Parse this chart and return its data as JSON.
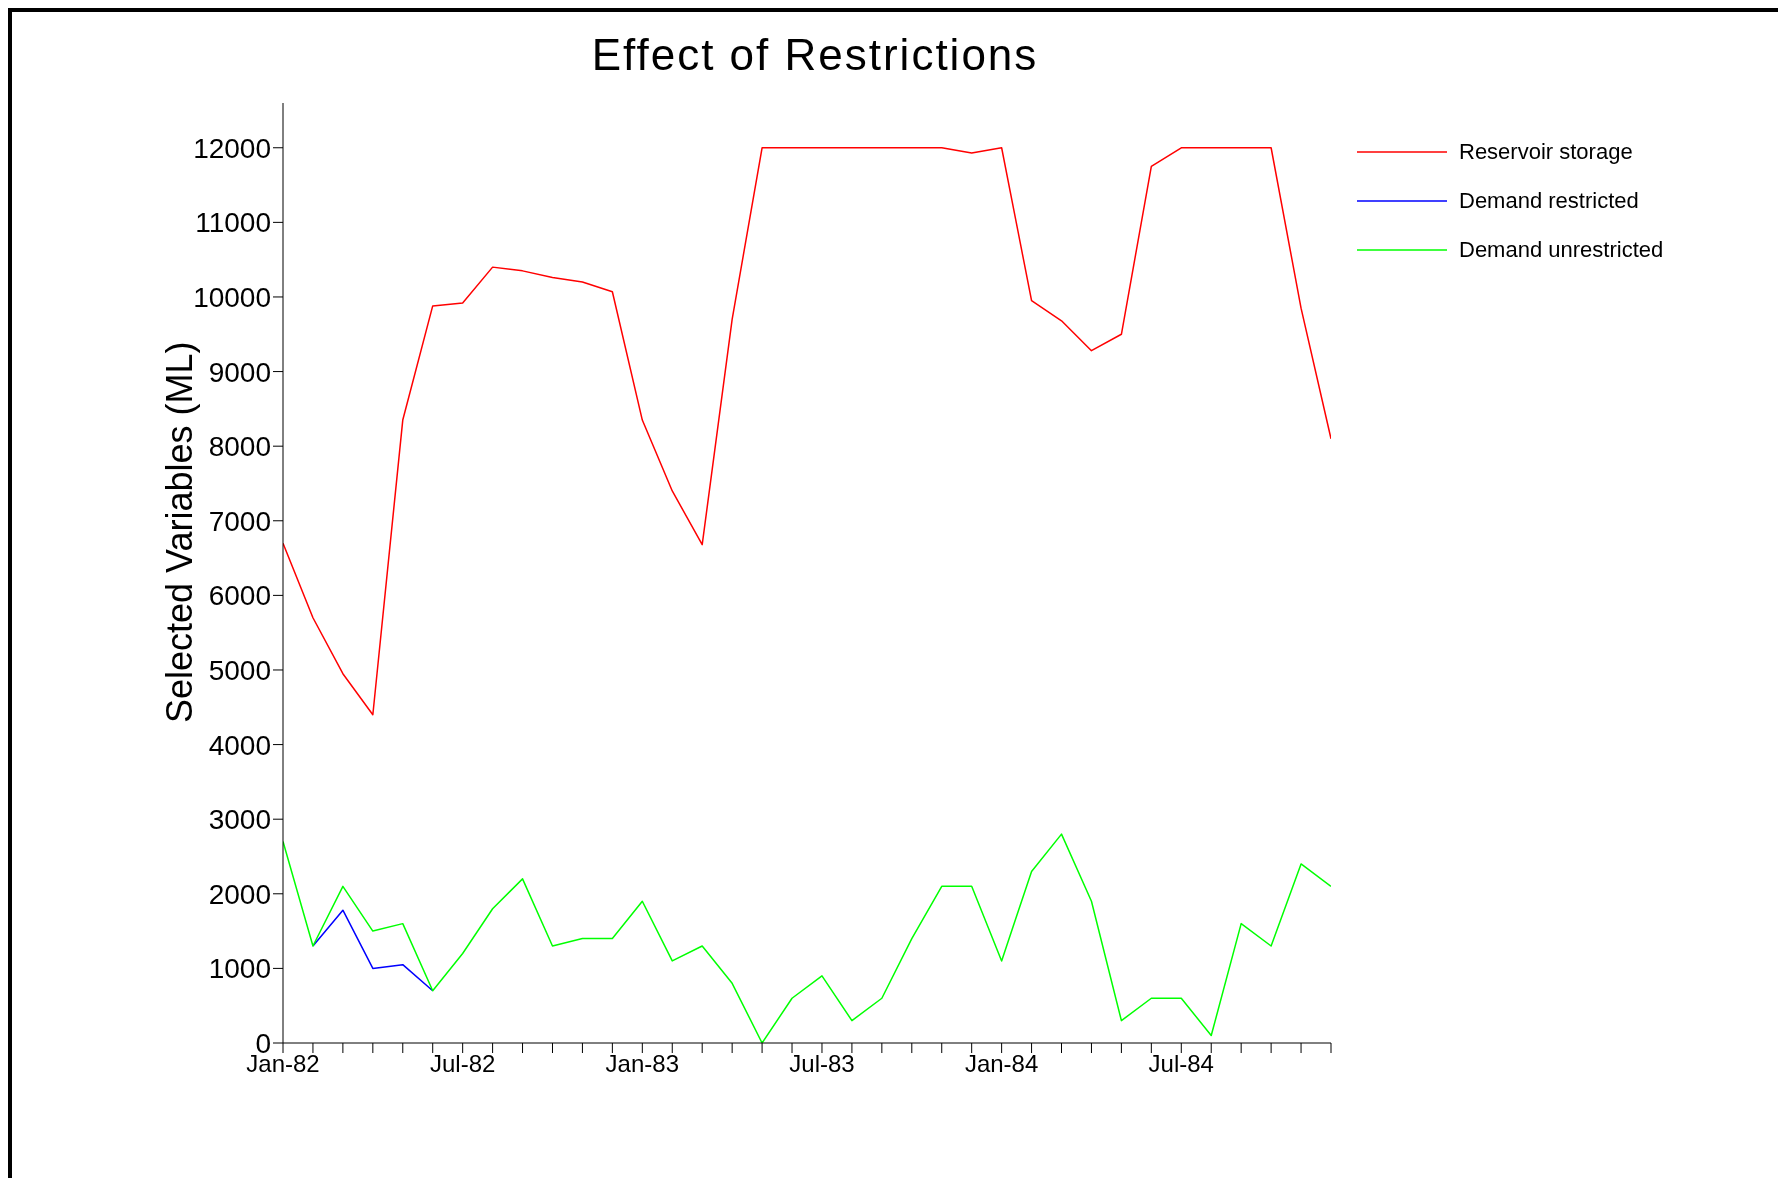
{
  "chart_data": {
    "type": "line",
    "title": "Effect of Restrictions",
    "ylabel": "Selected Variables (ML)",
    "categories": [
      "Jan-82",
      null,
      null,
      null,
      null,
      null,
      "Jul-82",
      null,
      null,
      null,
      null,
      null,
      "Jan-83",
      null,
      null,
      null,
      null,
      null,
      "Jul-83",
      null,
      null,
      null,
      null,
      null,
      "Jan-84",
      null,
      null,
      null,
      null,
      null,
      "Jul-84",
      null,
      null,
      null,
      null,
      null
    ],
    "series": [
      {
        "name": "Reservoir storage",
        "color": "#ff0000",
        "values": [
          6700,
          5700,
          4950,
          4400,
          8350,
          9880,
          9920,
          10400,
          10350,
          10260,
          10200,
          10070,
          8350,
          7400,
          6680,
          9700,
          12000,
          12000,
          12000,
          12000,
          12000,
          12000,
          12000,
          11930,
          12000,
          9950,
          9680,
          9280,
          9500,
          11750,
          12000,
          12000,
          12000,
          12000,
          9850,
          8100
        ]
      },
      {
        "name": "Demand restricted",
        "color": "#0000ff",
        "values": [
          null,
          1300,
          1780,
          1000,
          1050,
          700,
          null,
          null,
          null,
          null,
          null,
          null,
          null,
          null,
          null,
          null,
          null,
          null,
          null,
          null,
          null,
          null,
          null,
          null,
          null,
          null,
          null,
          null,
          null,
          null,
          null,
          null,
          null,
          null,
          null,
          null
        ]
      },
      {
        "name": "Demand unrestricted",
        "color": "#00ff00",
        "values": [
          2700,
          1300,
          2100,
          1500,
          1600,
          700,
          1200,
          1800,
          2200,
          1300,
          1400,
          1400,
          1900,
          1100,
          1300,
          800,
          0,
          600,
          900,
          300,
          600,
          1400,
          2100,
          2100,
          1100,
          2300,
          2800,
          1900,
          300,
          600,
          600,
          100,
          1600,
          1300,
          2400,
          2100
        ]
      }
    ],
    "ylim": [
      0,
      12600
    ],
    "yticks": [
      0,
      1000,
      2000,
      3000,
      4000,
      5000,
      6000,
      7000,
      8000,
      9000,
      10000,
      11000,
      12000
    ],
    "legend": "right",
    "marker": "none",
    "line_style": "solid",
    "grid": false
  }
}
